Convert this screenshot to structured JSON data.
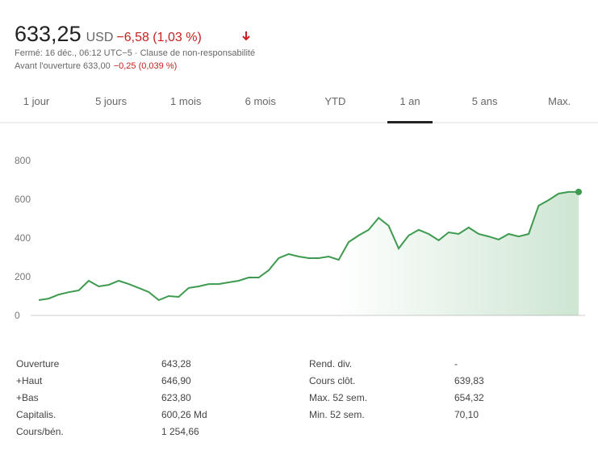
{
  "header": {
    "price": "633,25",
    "currency": "USD",
    "change": "−6,58 (1,03 %)",
    "status": "Fermé: 16 déc., 06:12 UTC−5 · Clause de non-responsabilité",
    "premarket": "Avant l'ouverture 633,00",
    "premarket_change": "−0,25 (0,039 %)"
  },
  "tabs": {
    "items": [
      "1 jour",
      "5 jours",
      "1 mois",
      "6 mois",
      "YTD",
      "1 an",
      "5 ans",
      "Max."
    ],
    "selected": 5
  },
  "chart_data": {
    "type": "line",
    "color": "#3d9a4f",
    "ylim": [
      0,
      800
    ],
    "yticks": [
      0,
      200,
      400,
      600,
      800
    ],
    "values": [
      79,
      87,
      108,
      120,
      129,
      179,
      150,
      158,
      179,
      162,
      142,
      121,
      79,
      100,
      96,
      142,
      150,
      162,
      162,
      171,
      179,
      196,
      196,
      233,
      296,
      317,
      304,
      296,
      296,
      304,
      287,
      379,
      413,
      442,
      504,
      463,
      346,
      413,
      442,
      421,
      388,
      429,
      421,
      454,
      421,
      408,
      392,
      421,
      408,
      421,
      567,
      596,
      629,
      638,
      638
    ]
  },
  "stats": {
    "left": [
      [
        "Ouverture",
        "643,28"
      ],
      [
        "+Haut",
        "646,90"
      ],
      [
        "+Bas",
        "623,80"
      ],
      [
        "Capitalis.",
        "600,26 Md"
      ],
      [
        "Cours/bén.",
        "1 254,66"
      ]
    ],
    "right": [
      [
        "Rend. div.",
        "-"
      ],
      [
        "Cours clôt.",
        "639,83"
      ],
      [
        "Max. 52 sem.",
        "654,32"
      ],
      [
        "Min. 52 sem.",
        "70,10"
      ]
    ]
  }
}
